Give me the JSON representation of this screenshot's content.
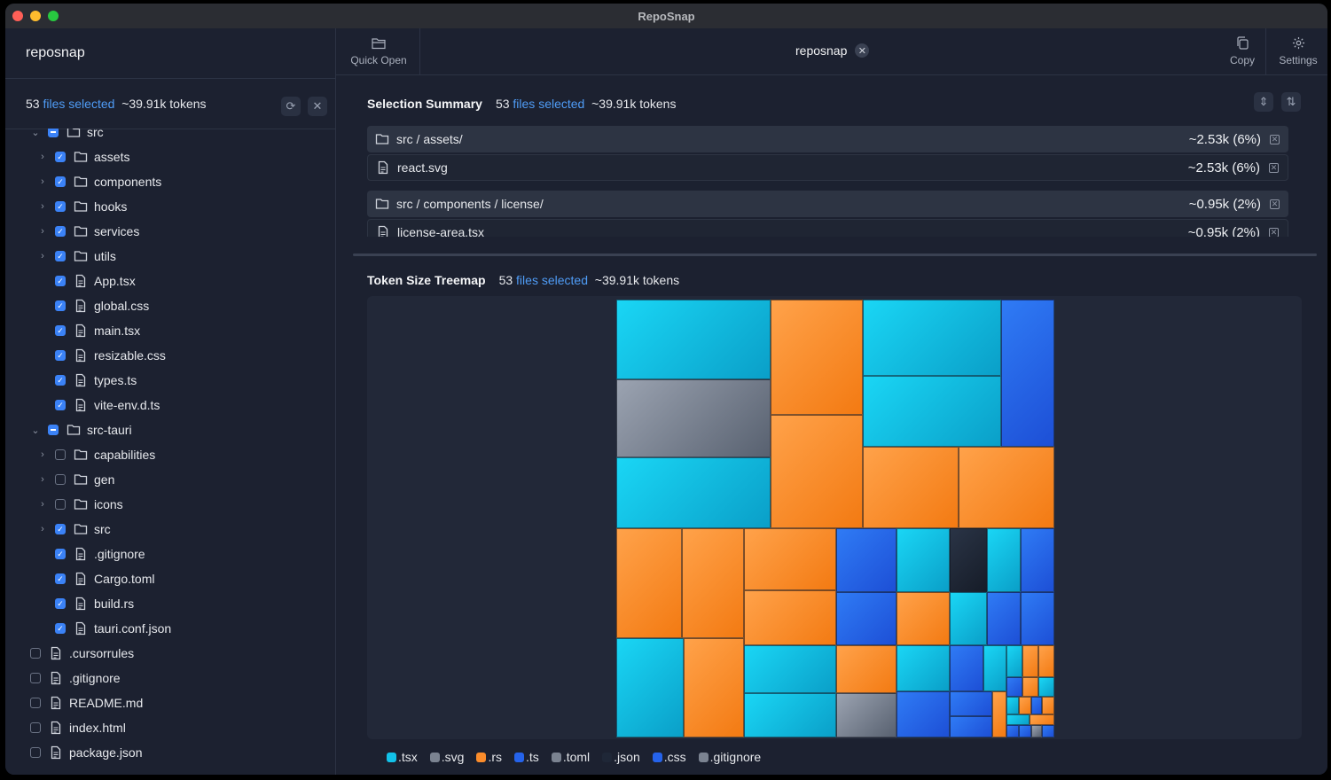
{
  "app": {
    "title": "RepoSnap"
  },
  "sidebar": {
    "project": "reposnap",
    "summary": {
      "count": "53",
      "files_label": "files selected",
      "tokens": "~39.91k tokens"
    },
    "tree": [
      {
        "label": "src",
        "type": "folder",
        "indent": 1,
        "chevron": "down",
        "check": "part",
        "cut": true
      },
      {
        "label": "assets",
        "type": "folder",
        "indent": 2,
        "chevron": "right",
        "check": "on"
      },
      {
        "label": "components",
        "type": "folder",
        "indent": 2,
        "chevron": "right",
        "check": "on"
      },
      {
        "label": "hooks",
        "type": "folder",
        "indent": 2,
        "chevron": "right",
        "check": "on"
      },
      {
        "label": "services",
        "type": "folder",
        "indent": 2,
        "chevron": "right",
        "check": "on"
      },
      {
        "label": "utils",
        "type": "folder",
        "indent": 2,
        "chevron": "right",
        "check": "on"
      },
      {
        "label": "App.tsx",
        "type": "file",
        "indent": 2,
        "check": "on"
      },
      {
        "label": "global.css",
        "type": "file",
        "indent": 2,
        "check": "on"
      },
      {
        "label": "main.tsx",
        "type": "file",
        "indent": 2,
        "check": "on"
      },
      {
        "label": "resizable.css",
        "type": "file",
        "indent": 2,
        "check": "on"
      },
      {
        "label": "types.ts",
        "type": "file",
        "indent": 2,
        "check": "on"
      },
      {
        "label": "vite-env.d.ts",
        "type": "file",
        "indent": 2,
        "check": "on"
      },
      {
        "label": "src-tauri",
        "type": "folder",
        "indent": 1,
        "chevron": "down",
        "check": "part"
      },
      {
        "label": "capabilities",
        "type": "folder",
        "indent": 2,
        "chevron": "right",
        "check": "off"
      },
      {
        "label": "gen",
        "type": "folder",
        "indent": 2,
        "chevron": "right",
        "check": "off"
      },
      {
        "label": "icons",
        "type": "folder",
        "indent": 2,
        "chevron": "right",
        "check": "off"
      },
      {
        "label": "src",
        "type": "folder",
        "indent": 2,
        "chevron": "right",
        "check": "on"
      },
      {
        "label": ".gitignore",
        "type": "file",
        "indent": 2,
        "check": "on"
      },
      {
        "label": "Cargo.toml",
        "type": "file",
        "indent": 2,
        "check": "on"
      },
      {
        "label": "build.rs",
        "type": "file",
        "indent": 2,
        "check": "on"
      },
      {
        "label": "tauri.conf.json",
        "type": "file",
        "indent": 2,
        "check": "on"
      },
      {
        "label": ".cursorrules",
        "type": "file",
        "indent": 1,
        "check": "off"
      },
      {
        "label": ".gitignore",
        "type": "file",
        "indent": 1,
        "check": "off"
      },
      {
        "label": "README.md",
        "type": "file",
        "indent": 1,
        "check": "off"
      },
      {
        "label": "index.html",
        "type": "file",
        "indent": 1,
        "check": "off"
      },
      {
        "label": "package.json",
        "type": "file",
        "indent": 1,
        "check": "off"
      }
    ]
  },
  "toolbar": {
    "quick_open": "Quick Open",
    "copy": "Copy",
    "settings": "Settings"
  },
  "tab": {
    "label": "reposnap"
  },
  "selection_summary": {
    "title": "Selection Summary",
    "count": "53",
    "files_label": "files selected",
    "tokens": "~39.91k tokens",
    "rows": [
      {
        "label": "src / assets/",
        "value": "~2.53k (6%)",
        "type": "dir"
      },
      {
        "label": "react.svg",
        "value": "~2.53k (6%)",
        "type": "file"
      },
      {
        "label": "src / components / license/",
        "value": "~0.95k (2%)",
        "type": "dir"
      },
      {
        "label": "license-area.tsx",
        "value": "~0.95k (2%)",
        "type": "file"
      }
    ]
  },
  "treemap": {
    "title": "Token Size Treemap",
    "count": "53",
    "files_label": "files selected",
    "tokens": "~39.91k tokens",
    "colors": {
      "tsx": "#12c2e9",
      "svg": "#7b8391",
      "rs": "#fb8c2b",
      "ts": "#2563eb",
      "toml": "#7b8391",
      "json": "#1f2737",
      "css": "#2563eb",
      "gitignore": "#7b8391"
    },
    "legend": [
      {
        "label": ".tsx",
        "color": "#12c2e9"
      },
      {
        "label": ".svg",
        "color": "#7b8391"
      },
      {
        "label": ".rs",
        "color": "#fb8c2b"
      },
      {
        "label": ".ts",
        "color": "#2563eb"
      },
      {
        "label": ".toml",
        "color": "#7b8391"
      },
      {
        "label": ".json",
        "color": "#1f2737"
      },
      {
        "label": ".css",
        "color": "#2563eb"
      },
      {
        "label": ".gitignore",
        "color": "#7b8391"
      }
    ]
  }
}
